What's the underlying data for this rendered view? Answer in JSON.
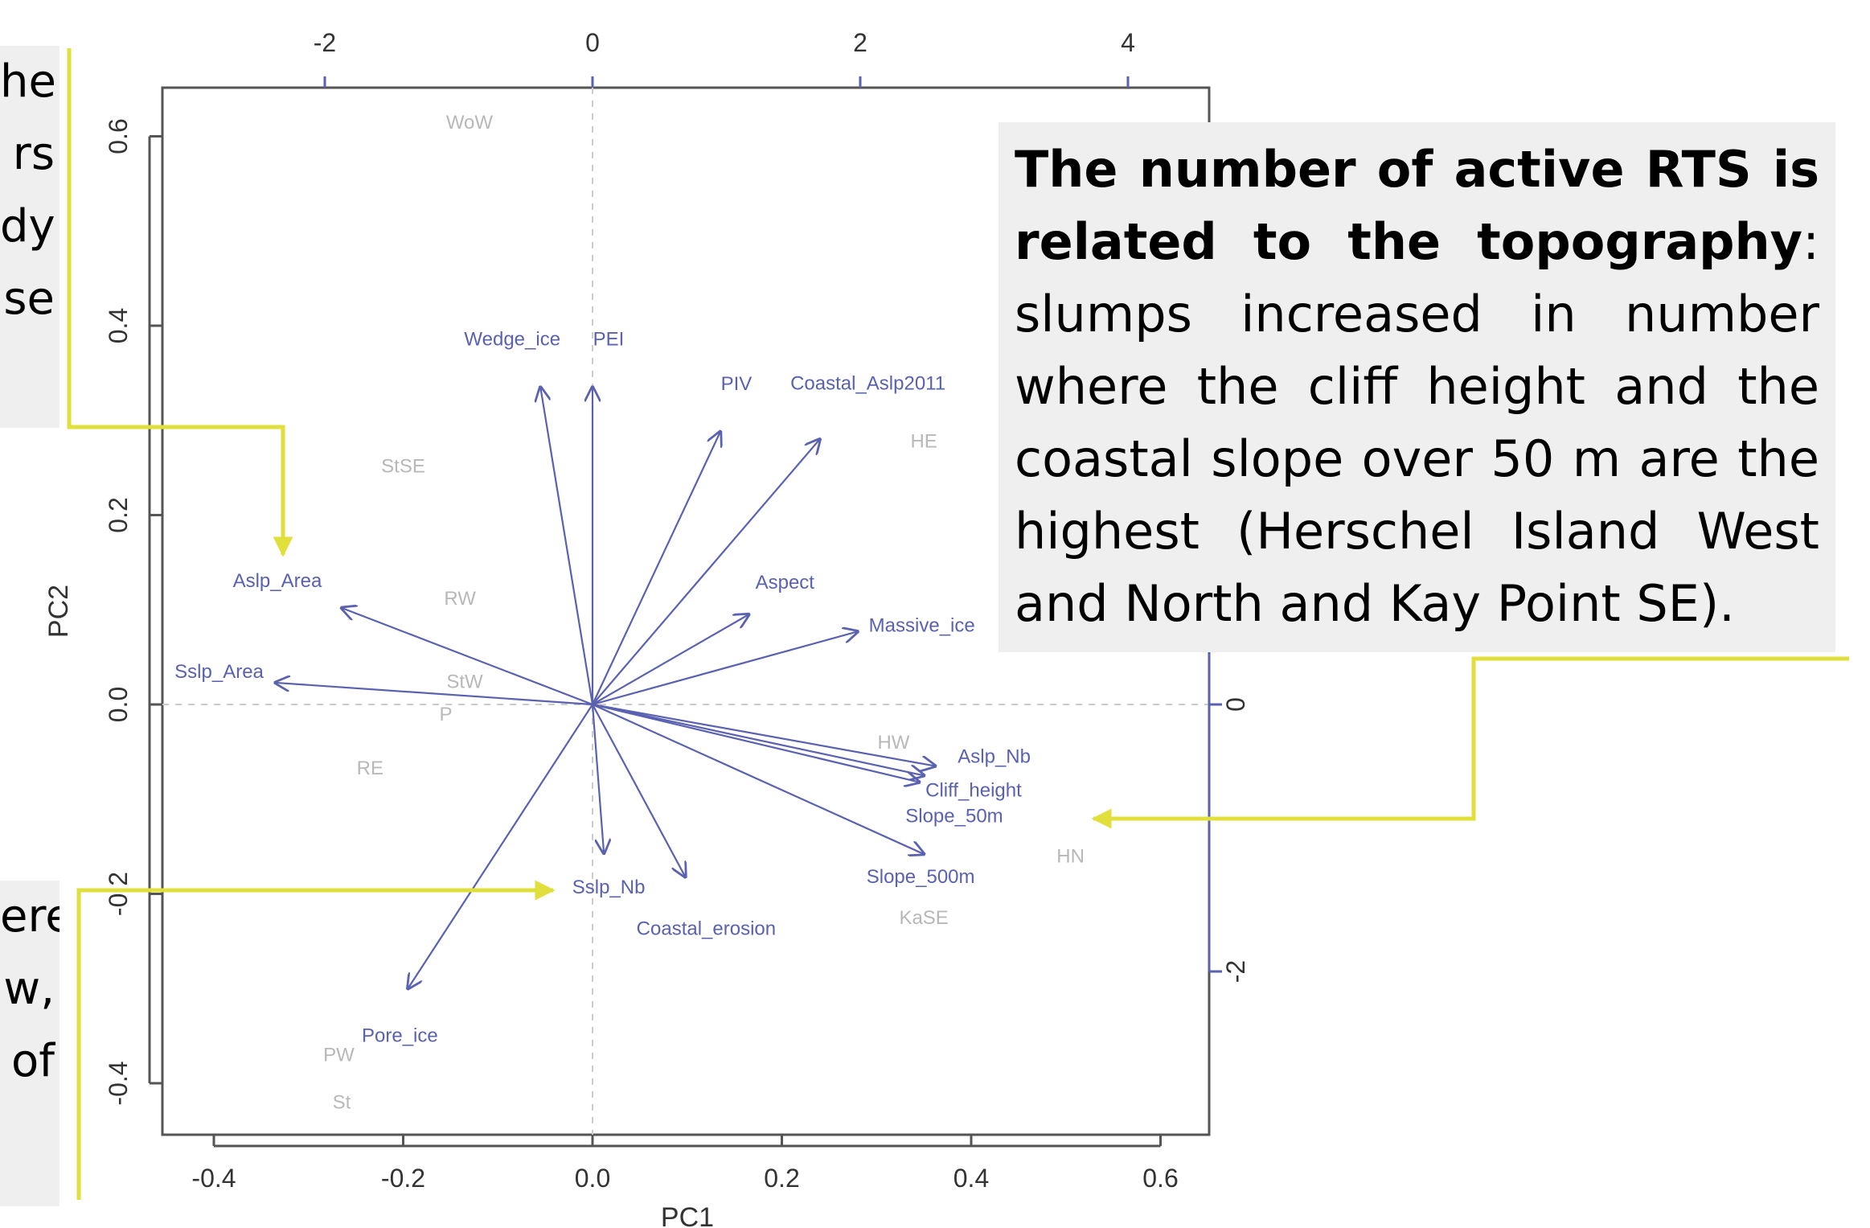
{
  "chart_data": {
    "type": "biplot",
    "xlabel": "PC1",
    "ylabel": "PC2",
    "xlim": [
      -0.45,
      0.65
    ],
    "ylim": [
      -0.45,
      0.65
    ],
    "x_ticks": [
      "-0.4",
      "-0.2",
      "0.0",
      "0.2",
      "0.4",
      "0.6"
    ],
    "y_ticks": [
      "-0.4",
      "-0.2",
      "0.0",
      "0.2",
      "0.4",
      "0.6"
    ],
    "top_axis_ticks": [
      "-2",
      "0",
      "2",
      "4"
    ],
    "right_axis_ticks": [
      "-2",
      "0"
    ],
    "sites": [
      {
        "label": "WoW",
        "x": -0.13,
        "y": 0.615
      },
      {
        "label": "StSE",
        "x": -0.2,
        "y": 0.252
      },
      {
        "label": "RW",
        "x": -0.14,
        "y": 0.112
      },
      {
        "label": "StW",
        "x": -0.135,
        "y": 0.024
      },
      {
        "label": "P",
        "x": -0.155,
        "y": -0.01
      },
      {
        "label": "RE",
        "x": -0.235,
        "y": -0.067
      },
      {
        "label": "HE",
        "x": 0.35,
        "y": 0.278
      },
      {
        "label": "HW",
        "x": 0.318,
        "y": -0.04
      },
      {
        "label": "HN",
        "x": 0.505,
        "y": -0.16
      },
      {
        "label": "KaSE",
        "x": 0.35,
        "y": -0.225
      },
      {
        "label": "PW",
        "x": -0.268,
        "y": -0.37
      },
      {
        "label": "St",
        "x": -0.265,
        "y": -0.42
      }
    ],
    "vectors": [
      {
        "label": "Wedge_ice",
        "x": -0.055,
        "y": 0.335
      },
      {
        "label": "PEI",
        "x": 0.0,
        "y": 0.335
      },
      {
        "label": "PIV",
        "x": 0.135,
        "y": 0.288
      },
      {
        "label": "Coastal_Aslp2011",
        "x": 0.24,
        "y": 0.28
      },
      {
        "label": "Aslp_Area",
        "x": -0.265,
        "y": 0.102
      },
      {
        "label": "Sslp_Area",
        "x": -0.335,
        "y": 0.023
      },
      {
        "label": "Aspect",
        "x": 0.165,
        "y": 0.095
      },
      {
        "label": "Massive_ice",
        "x": 0.28,
        "y": 0.077
      },
      {
        "label": "Aslp_Nb",
        "x": 0.362,
        "y": -0.065
      },
      {
        "label": "Cliff_height",
        "x": 0.35,
        "y": -0.075
      },
      {
        "label": "Slope_50m",
        "x": 0.345,
        "y": -0.082
      },
      {
        "label": "Slope_500m",
        "x": 0.35,
        "y": -0.158
      },
      {
        "label": "Sslp_Nb",
        "x": 0.012,
        "y": -0.157
      },
      {
        "label": "Coastal_erosion",
        "x": 0.098,
        "y": -0.182
      },
      {
        "label": "Pore_ice",
        "x": -0.195,
        "y": -0.3
      }
    ]
  },
  "callouts": {
    "left_top_fragments": [
      "he",
      "rs",
      "dy",
      "se"
    ],
    "left_bottom_fragments": [
      "ere",
      "w,",
      "of"
    ],
    "right_bold_1": "The number of active RTS is related to the topography",
    "right_rest": ": slumps increased in number where the cliff height  and the coastal slope over 50 m are the highest (Herschel Island West and North and Kay Point SE)."
  },
  "colors": {
    "vector": "#5a61b0",
    "site": "#b8b8b8",
    "axis": "#555555",
    "arrow_highlight": "#e0df3c",
    "callout_bg": "#efefef"
  }
}
